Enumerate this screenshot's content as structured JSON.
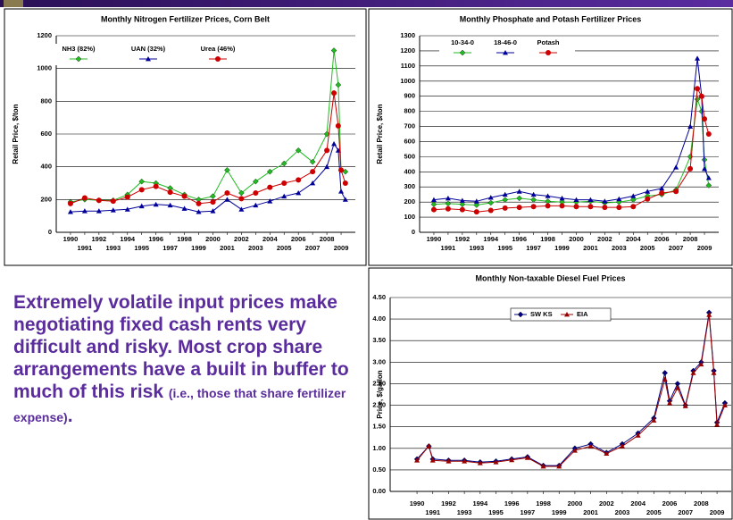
{
  "chart_data": [
    {
      "type": "line",
      "title": "Monthly Nitrogen Fertilizer Prices, Corn Belt",
      "y_label": "Retail Price, $/ton",
      "x": [
        1990,
        1991,
        1992,
        1993,
        1994,
        1995,
        1996,
        1997,
        1998,
        1999,
        2000,
        2001,
        2002,
        2003,
        2004,
        2005,
        2006,
        2007,
        2008,
        2008.5,
        2008.8,
        2009,
        2009.3
      ],
      "xlim": [
        1989,
        2010
      ],
      "xticks": [
        1990,
        1991,
        1992,
        1993,
        1994,
        1995,
        1996,
        1997,
        1998,
        1999,
        2000,
        2001,
        2002,
        2003,
        2004,
        2005,
        2006,
        2007,
        2008,
        2009
      ],
      "ylim": [
        0,
        1200
      ],
      "yticks": [
        0,
        200,
        400,
        600,
        800,
        1000,
        1200
      ],
      "grid": true,
      "legend": "top-left",
      "series": [
        {
          "name": "NH3 (82%)",
          "color": "#22bb22",
          "marker": "diamond",
          "values": [
            185,
            200,
            195,
            195,
            230,
            310,
            300,
            270,
            230,
            200,
            220,
            380,
            240,
            310,
            370,
            420,
            500,
            430,
            600,
            1110,
            900,
            380,
            370
          ]
        },
        {
          "name": "UAN (32%)",
          "color": "#000099",
          "marker": "triangle",
          "values": [
            125,
            130,
            130,
            135,
            140,
            160,
            170,
            165,
            145,
            125,
            130,
            200,
            140,
            165,
            190,
            220,
            240,
            300,
            400,
            540,
            500,
            250,
            200
          ]
        },
        {
          "name": "Urea (46%)",
          "color": "#cc0000",
          "marker": "circle",
          "values": [
            175,
            210,
            195,
            190,
            215,
            260,
            280,
            245,
            220,
            175,
            185,
            240,
            205,
            240,
            275,
            300,
            320,
            370,
            500,
            850,
            650,
            380,
            300
          ]
        }
      ]
    },
    {
      "type": "line",
      "title": "Monthly Phosphate and Potash Fertilizer Prices",
      "y_label": "Retail Price, $/ton",
      "x": [
        1990,
        1991,
        1992,
        1993,
        1994,
        1995,
        1996,
        1997,
        1998,
        1999,
        2000,
        2001,
        2002,
        2003,
        2004,
        2005,
        2006,
        2007,
        2008,
        2008.5,
        2008.8,
        2009,
        2009.3
      ],
      "xlim": [
        1989,
        2010
      ],
      "xticks": [
        1990,
        1991,
        1992,
        1993,
        1994,
        1995,
        1996,
        1997,
        1998,
        1999,
        2000,
        2001,
        2002,
        2003,
        2004,
        2005,
        2006,
        2007,
        2008,
        2009
      ],
      "ylim": [
        0,
        1300
      ],
      "yticks": [
        0,
        100,
        200,
        300,
        400,
        500,
        600,
        700,
        800,
        900,
        1000,
        1100,
        1200,
        1300
      ],
      "grid": true,
      "legend": "top-left",
      "series": [
        {
          "name": "10-34-0",
          "color": "#22bb22",
          "marker": "diamond",
          "values": [
            185,
            190,
            185,
            180,
            195,
            215,
            225,
            215,
            205,
            200,
            200,
            205,
            195,
            200,
            215,
            240,
            250,
            280,
            500,
            880,
            800,
            480,
            310
          ]
        },
        {
          "name": "18-46-0",
          "color": "#000099",
          "marker": "triangle",
          "values": [
            215,
            225,
            210,
            205,
            230,
            250,
            270,
            250,
            240,
            225,
            215,
            215,
            205,
            220,
            240,
            270,
            290,
            430,
            700,
            1150,
            900,
            420,
            360
          ]
        },
        {
          "name": "Potash",
          "color": "#cc0000",
          "marker": "circle",
          "values": [
            150,
            155,
            150,
            135,
            145,
            160,
            165,
            170,
            175,
            175,
            170,
            170,
            165,
            165,
            170,
            220,
            260,
            270,
            420,
            950,
            900,
            750,
            650
          ]
        }
      ]
    },
    {
      "type": "line",
      "title": "Monthly Non-taxable Diesel Fuel Prices",
      "y_label": "Price, $/gallon",
      "x": [
        1990,
        1990.75,
        1991,
        1992,
        1993,
        1994,
        1995,
        1996,
        1997,
        1998,
        1999,
        2000,
        2001,
        2002,
        2003,
        2004,
        2005,
        2005.7,
        2006,
        2006.5,
        2007,
        2007.5,
        2008,
        2008.5,
        2008.8,
        2009,
        2009.5
      ],
      "xlim": [
        1988.3,
        2009.9
      ],
      "xticks": [
        1990,
        1991,
        1992,
        1993,
        1994,
        1995,
        1996,
        1997,
        1998,
        1999,
        2000,
        2001,
        2002,
        2003,
        2004,
        2005,
        2006,
        2007,
        2008,
        2009
      ],
      "ylim": [
        0,
        4.5
      ],
      "yticks": [
        {
          "value": 0,
          "label": "0.00"
        },
        {
          "value": 0.5,
          "label": "0.50"
        },
        {
          "value": 1,
          "label": "1.00"
        },
        {
          "value": 1.5,
          "label": "1.50"
        },
        {
          "value": 2,
          "label": "2.00"
        },
        {
          "value": 2.5,
          "label": "2.50"
        },
        {
          "value": 3,
          "label": "3.00"
        },
        {
          "value": 3.5,
          "label": "3.50"
        },
        {
          "value": 4,
          "label": "4.00"
        },
        {
          "value": 4.5,
          "label": "4.50"
        }
      ],
      "grid": true,
      "legend": "top-center",
      "series": [
        {
          "name": "SW KS",
          "color": "#000080",
          "marker": "diamond",
          "values": [
            0.75,
            1.05,
            0.75,
            0.72,
            0.72,
            0.68,
            0.7,
            0.75,
            0.8,
            0.6,
            0.6,
            1.0,
            1.1,
            0.9,
            1.1,
            1.35,
            1.7,
            2.75,
            2.1,
            2.5,
            2.0,
            2.8,
            3.0,
            4.15,
            2.8,
            1.6,
            2.05
          ]
        },
        {
          "name": "EIA",
          "color": "#990000",
          "marker": "triangle",
          "values": [
            0.72,
            1.05,
            0.72,
            0.7,
            0.7,
            0.66,
            0.68,
            0.73,
            0.78,
            0.58,
            0.58,
            0.95,
            1.05,
            0.88,
            1.05,
            1.3,
            1.65,
            2.6,
            2.05,
            2.4,
            1.98,
            2.75,
            2.95,
            4.1,
            2.75,
            1.55,
            2.0
          ]
        }
      ]
    }
  ],
  "note": {
    "main": "Extremely volatile input prices make negotiating fixed cash rents very difficult and risky. Most crop share arrangements have a built in buffer to much of this risk ",
    "aside": "(i.e., those that share fertilizer expense)",
    "end": "."
  }
}
